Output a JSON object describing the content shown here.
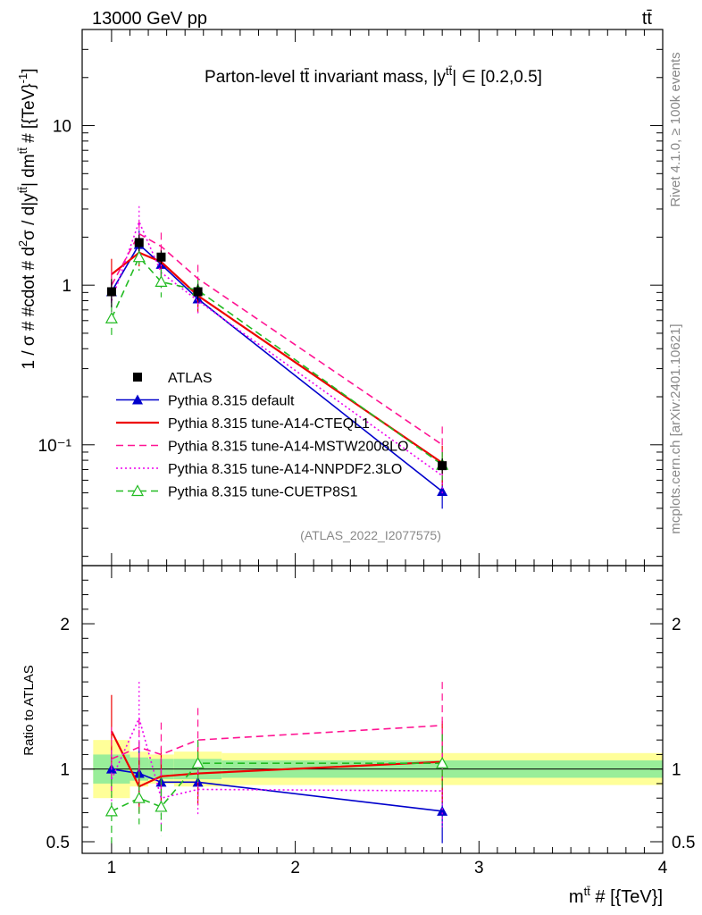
{
  "header": {
    "energy": "13000 GeV pp",
    "process": "tt̄"
  },
  "side": {
    "rivet": "Rivet 4.1.0, ≥ 100k events",
    "mcplots": "mcplots.cern.ch [arXiv:2401.10621]"
  },
  "chart_data": {
    "type": "line",
    "title": "Parton-level tt̄ invariant mass, |y^tt̄| ∈ [0.2,0.5]",
    "title_main": "Parton-level tt̄ invariant mass, |y",
    "title_sup": "tt̄",
    "title_tail": "| ∈ [0.2,0.5]",
    "analysis": "(ATLAS_2022_I2077575)",
    "ylabel": "1 / σ # #cdot # d²σ / d|y^tt̄| dm^tt̄ # [{TeV}⁻¹]",
    "ylabel_a": "1 / σ # #cdot # d",
    "ylabel_b": "σ / d|y",
    "ylabel_c": "| dm",
    "ylabel_d": " # [{TeV}",
    "ylabel_e": "]",
    "ylabel_sup2": "2",
    "ylabel_suptt": "tt̄",
    "ylabel_supm1": "-1",
    "ratio_ylabel": "Ratio to ATLAS",
    "xlabel": "m^tt̄ # [{TeV}]",
    "xlabel_main": "m",
    "xlabel_sup": "tt̄",
    "xlabel_tail": " # [{TeV}]",
    "xlim": [
      0.84,
      4.0
    ],
    "ylim": [
      0.0175,
      40
    ],
    "ratio_ylim": [
      0.42,
      2.4
    ],
    "x_ticks": [
      "1",
      "2",
      "3",
      "4"
    ],
    "y_ticks": [
      "10",
      "1",
      "10⁻¹"
    ],
    "ratio_ticks": [
      "2",
      "1",
      "0.5"
    ],
    "x": [
      1.0,
      1.15,
      1.27,
      1.47,
      2.8
    ],
    "bins": [
      [
        0.9,
        1.1
      ],
      [
        1.1,
        1.2
      ],
      [
        1.2,
        1.34
      ],
      [
        1.34,
        1.6
      ],
      [
        1.6,
        4.0
      ]
    ],
    "data": {
      "name": "ATLAS",
      "values": [
        0.91,
        1.85,
        1.5,
        0.91,
        0.074
      ],
      "band_stat": [
        0.1,
        0.08,
        0.07,
        0.07,
        0.06
      ],
      "band_total": [
        0.2,
        0.12,
        0.1,
        0.12,
        0.11
      ]
    },
    "series": [
      {
        "name": "Pythia 8.315 default",
        "color": "#0000cc",
        "dash": "solid",
        "marker": "filled-triangle",
        "values": [
          0.91,
          1.8,
          1.35,
          0.82,
          0.051
        ],
        "ratio": [
          1.0,
          0.97,
          0.91,
          0.91,
          0.71
        ],
        "err": [
          0.15,
          0.22,
          0.16,
          0.1,
          0.22
        ]
      },
      {
        "name": "Pythia 8.315 tune-A14-CTEQL1",
        "color": "#ee0000",
        "dash": "solid",
        "marker": "none",
        "values": [
          1.17,
          1.6,
          1.4,
          0.86,
          0.077
        ],
        "ratio": [
          1.26,
          0.88,
          0.95,
          0.97,
          1.05
        ],
        "err": [
          0.25,
          0.18,
          0.2,
          0.22,
          0.28
        ]
      },
      {
        "name": "Pythia 8.315 tune-A14-MSTW2008LO",
        "color": "#ff1493",
        "dash": "dashed",
        "marker": "none",
        "values": [
          1.0,
          2.1,
          1.75,
          1.1,
          0.1
        ],
        "ratio": [
          1.07,
          1.15,
          1.1,
          1.2,
          1.3
        ],
        "err": [
          0.22,
          0.2,
          0.22,
          0.22,
          0.3
        ]
      },
      {
        "name": "Pythia 8.315 tune-A14-NNPDF2.3LO",
        "color": "#ee00ee",
        "dash": "dotted",
        "marker": "none",
        "values": [
          0.8,
          2.5,
          1.2,
          0.8,
          0.064
        ],
        "ratio": [
          0.93,
          1.35,
          0.8,
          0.86,
          0.85
        ],
        "err": [
          0.2,
          0.25,
          0.2,
          0.18,
          0.25
        ]
      },
      {
        "name": "Pythia 8.315 tune-CUETP8S1",
        "color": "#22bb22",
        "dash": "dashed",
        "marker": "open-triangle",
        "values": [
          0.62,
          1.5,
          1.05,
          0.93,
          0.075
        ],
        "ratio": [
          0.71,
          0.8,
          0.74,
          1.04,
          1.04
        ],
        "err": [
          0.22,
          0.18,
          0.2,
          0.16,
          0.2
        ]
      }
    ]
  }
}
